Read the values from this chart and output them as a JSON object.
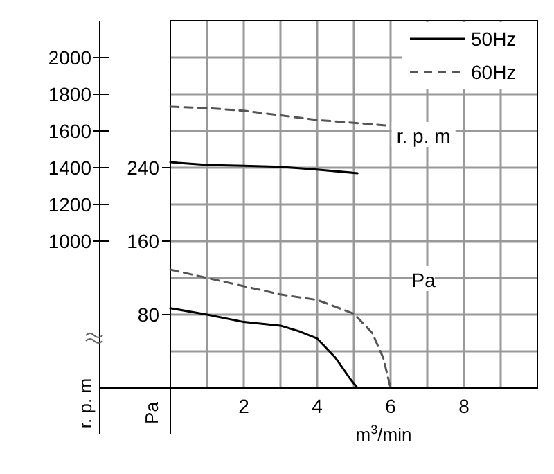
{
  "chart_data": {
    "type": "line",
    "xlabel": "m$^{3}$/min",
    "ylabel": "Pa",
    "y2label": "r. p. m",
    "xlim": [
      0,
      10
    ],
    "xticks": [
      {
        "value": 1,
        "label": null
      },
      2,
      {
        "value": 3,
        "label": null
      },
      4,
      {
        "value": 5,
        "label": null
      },
      6,
      {
        "value": 7,
        "label": null
      },
      8,
      {
        "value": 9,
        "label": null
      }
    ],
    "ylim": [
      0,
      400
    ],
    "yticks": [
      {
        "value": 40,
        "label": null
      },
      80,
      {
        "value": 120,
        "label": null
      },
      160,
      {
        "value": 200,
        "label": null
      },
      240,
      {
        "value": 280,
        "label": null
      },
      {
        "value": 320,
        "label": null
      },
      {
        "value": 360,
        "label": null
      }
    ],
    "y2lim": [
      200,
      2200
    ],
    "y2ticks": [
      1000,
      1200,
      1400,
      1600,
      1800,
      2000
    ],
    "grid": true,
    "legend": "top right",
    "series": [
      {
        "name": "50Hz",
        "color": "#000000",
        "line_style": "solid",
        "x": [
          0,
          1,
          2,
          3,
          3.5,
          4,
          4.5,
          4.9,
          5.1
        ],
        "values": [
          87,
          80,
          72,
          68,
          62,
          54,
          33,
          10,
          0
        ]
      },
      {
        "name": "60Hz",
        "color": "#555555",
        "line_style": "dashed",
        "x": [
          0,
          1,
          2,
          3,
          4,
          5,
          5.5,
          5.8,
          6
        ],
        "values": [
          129,
          120,
          111,
          102,
          96,
          81,
          60,
          33,
          0
        ]
      },
      {
        "color": "#000000",
        "line_style": "solid",
        "axis": "y2",
        "x": [
          0,
          1,
          2,
          3,
          4,
          5.1
        ],
        "values": [
          1430,
          1415,
          1410,
          1405,
          1390,
          1370
        ]
      },
      {
        "color": "#555555",
        "line_style": "dashed",
        "axis": "y2",
        "x": [
          0,
          1,
          2,
          3,
          4,
          5.9
        ],
        "values": [
          1732,
          1725,
          1710,
          1685,
          1660,
          1630
        ]
      }
    ],
    "annotations": [
      "r. p. m",
      "Pa"
    ]
  }
}
